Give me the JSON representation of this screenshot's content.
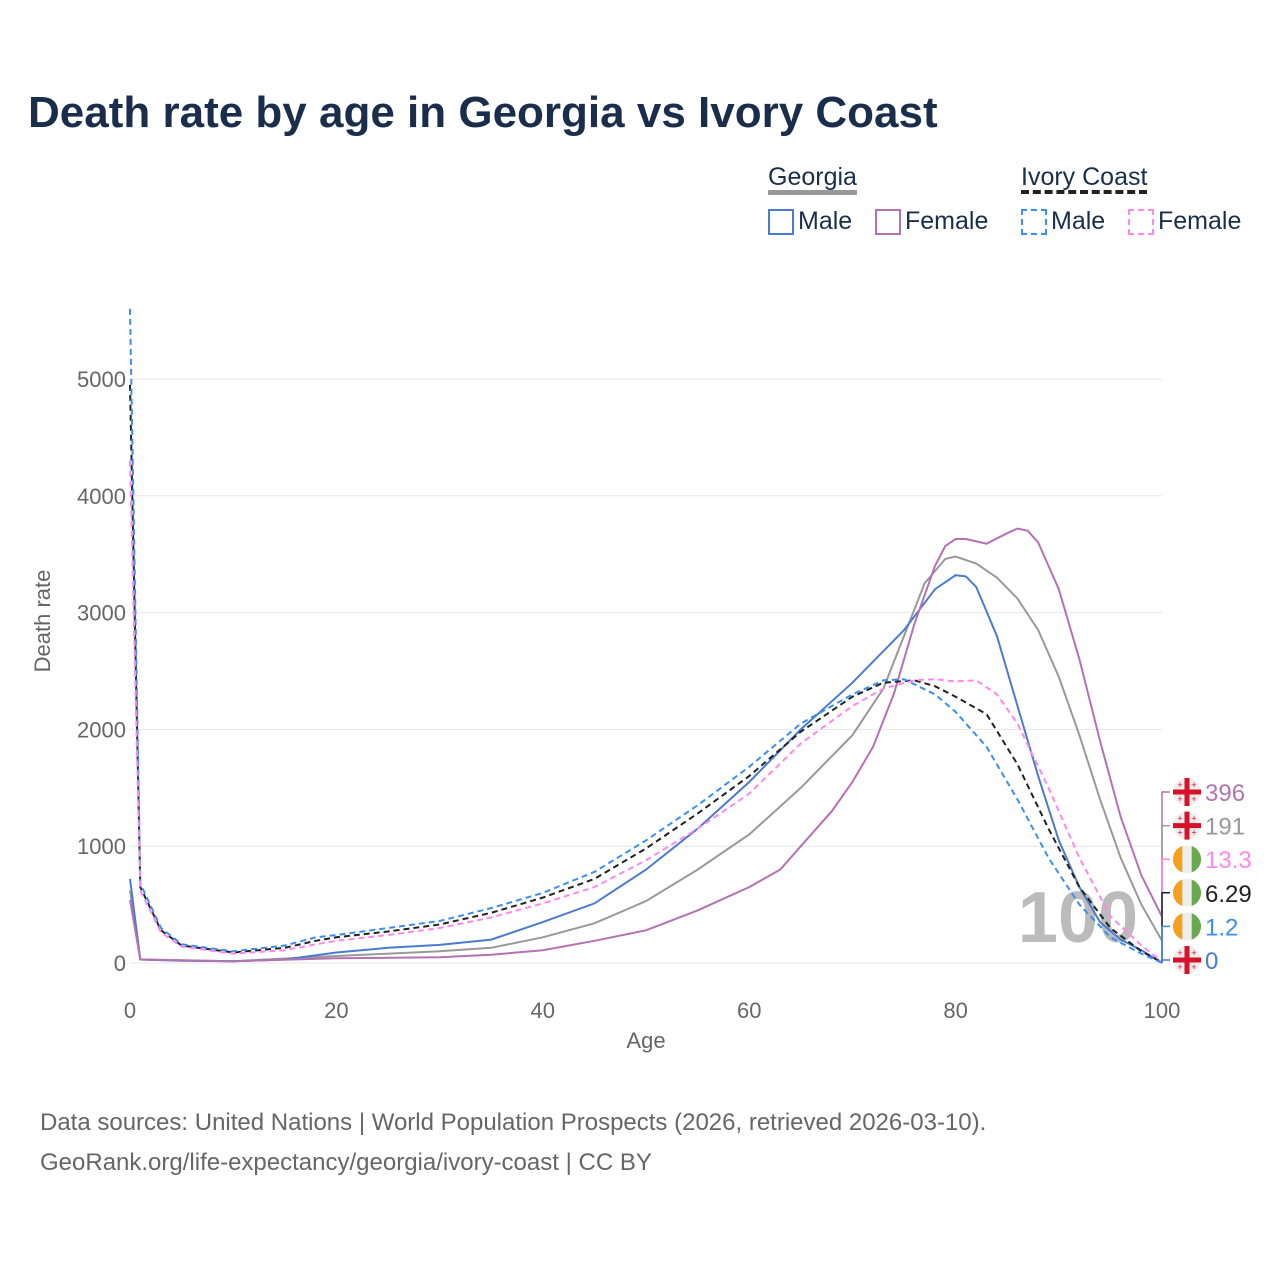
{
  "title": "Death rate by age in Georgia vs Ivory Coast",
  "legend": {
    "georgia": "Georgia",
    "ivory_coast": "Ivory Coast",
    "male": "Male",
    "female": "Female"
  },
  "footer": {
    "line1": "Data sources: United Nations | World Population Prospects (2026, retrieved 2026-03-10).",
    "line2": "GeoRank.org/life-expectancy/georgia/ivory-coast | CC BY"
  },
  "chart_data": {
    "type": "line",
    "xlabel": "Age",
    "ylabel": "Death rate",
    "xlim": [
      0,
      100
    ],
    "ylim": [
      0,
      5000
    ],
    "xticks": [
      "0",
      "20",
      "40",
      "60",
      "80",
      "100"
    ],
    "yticks": [
      "0",
      "1000",
      "2000",
      "3000",
      "4000",
      "5000"
    ],
    "watermark": "100",
    "series": [
      {
        "name": "Georgia",
        "color": "#999999",
        "dash": false,
        "end_label": "191",
        "flag": "georgia",
        "points": [
          [
            0,
            620
          ],
          [
            1,
            30
          ],
          [
            10,
            15
          ],
          [
            20,
            60
          ],
          [
            30,
            100
          ],
          [
            35,
            130
          ],
          [
            40,
            220
          ],
          [
            45,
            340
          ],
          [
            50,
            530
          ],
          [
            55,
            800
          ],
          [
            60,
            1100
          ],
          [
            65,
            1500
          ],
          [
            70,
            1950
          ],
          [
            73,
            2350
          ],
          [
            75,
            2800
          ],
          [
            77,
            3250
          ],
          [
            79,
            3460
          ],
          [
            80,
            3480
          ],
          [
            82,
            3420
          ],
          [
            84,
            3300
          ],
          [
            86,
            3120
          ],
          [
            88,
            2850
          ],
          [
            90,
            2450
          ],
          [
            92,
            1950
          ],
          [
            94,
            1400
          ],
          [
            96,
            900
          ],
          [
            98,
            500
          ],
          [
            100,
            191
          ]
        ]
      },
      {
        "name": "Georgia Male",
        "color": "#4a7bd0",
        "dash": false,
        "end_label": "0",
        "flag": "georgia",
        "points": [
          [
            0,
            720
          ],
          [
            1,
            30
          ],
          [
            5,
            20
          ],
          [
            10,
            15
          ],
          [
            15,
            30
          ],
          [
            20,
            90
          ],
          [
            25,
            130
          ],
          [
            30,
            155
          ],
          [
            35,
            200
          ],
          [
            40,
            350
          ],
          [
            45,
            510
          ],
          [
            50,
            800
          ],
          [
            55,
            1150
          ],
          [
            60,
            1550
          ],
          [
            65,
            2000
          ],
          [
            70,
            2400
          ],
          [
            75,
            2850
          ],
          [
            78,
            3200
          ],
          [
            80,
            3320
          ],
          [
            81,
            3310
          ],
          [
            82,
            3220
          ],
          [
            84,
            2800
          ],
          [
            86,
            2200
          ],
          [
            88,
            1600
          ],
          [
            90,
            1050
          ],
          [
            92,
            650
          ],
          [
            94,
            350
          ],
          [
            96,
            200
          ],
          [
            98,
            110
          ],
          [
            100,
            0
          ]
        ]
      },
      {
        "name": "Georgia Female",
        "color": "#b472b4",
        "dash": false,
        "end_label": "396",
        "flag": "georgia",
        "points": [
          [
            0,
            540
          ],
          [
            1,
            30
          ],
          [
            10,
            15
          ],
          [
            20,
            40
          ],
          [
            30,
            50
          ],
          [
            35,
            70
          ],
          [
            40,
            110
          ],
          [
            45,
            190
          ],
          [
            50,
            280
          ],
          [
            55,
            450
          ],
          [
            60,
            650
          ],
          [
            63,
            800
          ],
          [
            65,
            1000
          ],
          [
            68,
            1300
          ],
          [
            70,
            1550
          ],
          [
            72,
            1850
          ],
          [
            74,
            2300
          ],
          [
            76,
            2900
          ],
          [
            78,
            3400
          ],
          [
            79,
            3570
          ],
          [
            80,
            3630
          ],
          [
            81,
            3630
          ],
          [
            83,
            3590
          ],
          [
            85,
            3680
          ],
          [
            86,
            3720
          ],
          [
            87,
            3700
          ],
          [
            88,
            3600
          ],
          [
            90,
            3200
          ],
          [
            92,
            2600
          ],
          [
            94,
            1900
          ],
          [
            96,
            1250
          ],
          [
            98,
            750
          ],
          [
            100,
            396
          ]
        ]
      },
      {
        "name": "Ivory Coast",
        "color": "#222222",
        "dash": true,
        "end_label": "6.29",
        "flag": "ivory-coast",
        "points": [
          [
            0,
            4950
          ],
          [
            1,
            650
          ],
          [
            3,
            280
          ],
          [
            5,
            150
          ],
          [
            10,
            90
          ],
          [
            15,
            130
          ],
          [
            18,
            190
          ],
          [
            20,
            220
          ],
          [
            25,
            270
          ],
          [
            30,
            330
          ],
          [
            35,
            430
          ],
          [
            40,
            560
          ],
          [
            45,
            720
          ],
          [
            50,
            980
          ],
          [
            55,
            1280
          ],
          [
            60,
            1600
          ],
          [
            65,
            1980
          ],
          [
            70,
            2280
          ],
          [
            73,
            2400
          ],
          [
            76,
            2420
          ],
          [
            78,
            2370
          ],
          [
            80,
            2280
          ],
          [
            83,
            2130
          ],
          [
            86,
            1700
          ],
          [
            89,
            1150
          ],
          [
            92,
            650
          ],
          [
            95,
            300
          ],
          [
            98,
            100
          ],
          [
            100,
            6.29
          ]
        ]
      },
      {
        "name": "Ivory Coast Male",
        "color": "#3b8ff0",
        "dash": true,
        "end_label": "1.2",
        "flag": "ivory-coast",
        "points": [
          [
            0,
            5600
          ],
          [
            1,
            680
          ],
          [
            3,
            300
          ],
          [
            5,
            160
          ],
          [
            10,
            100
          ],
          [
            15,
            150
          ],
          [
            18,
            220
          ],
          [
            20,
            240
          ],
          [
            25,
            300
          ],
          [
            30,
            360
          ],
          [
            35,
            470
          ],
          [
            40,
            600
          ],
          [
            45,
            780
          ],
          [
            50,
            1050
          ],
          [
            55,
            1350
          ],
          [
            60,
            1680
          ],
          [
            65,
            2050
          ],
          [
            70,
            2300
          ],
          [
            73,
            2420
          ],
          [
            75,
            2430
          ],
          [
            78,
            2300
          ],
          [
            80,
            2150
          ],
          [
            83,
            1850
          ],
          [
            86,
            1400
          ],
          [
            89,
            900
          ],
          [
            92,
            500
          ],
          [
            95,
            220
          ],
          [
            98,
            80
          ],
          [
            100,
            1.2
          ]
        ]
      },
      {
        "name": "Ivory Coast Female",
        "color": "#ff88ee",
        "dash": true,
        "end_label": "13.3",
        "flag": "ivory-coast",
        "points": [
          [
            0,
            4300
          ],
          [
            1,
            620
          ],
          [
            3,
            260
          ],
          [
            5,
            140
          ],
          [
            10,
            80
          ],
          [
            15,
            110
          ],
          [
            18,
            160
          ],
          [
            20,
            190
          ],
          [
            25,
            240
          ],
          [
            30,
            300
          ],
          [
            35,
            390
          ],
          [
            40,
            510
          ],
          [
            45,
            650
          ],
          [
            50,
            880
          ],
          [
            55,
            1150
          ],
          [
            60,
            1450
          ],
          [
            65,
            1880
          ],
          [
            70,
            2200
          ],
          [
            73,
            2350
          ],
          [
            76,
            2420
          ],
          [
            78,
            2430
          ],
          [
            80,
            2410
          ],
          [
            82,
            2420
          ],
          [
            84,
            2300
          ],
          [
            86,
            2050
          ],
          [
            89,
            1500
          ],
          [
            92,
            900
          ],
          [
            95,
            400
          ],
          [
            98,
            150
          ],
          [
            100,
            13.3
          ]
        ]
      }
    ]
  }
}
